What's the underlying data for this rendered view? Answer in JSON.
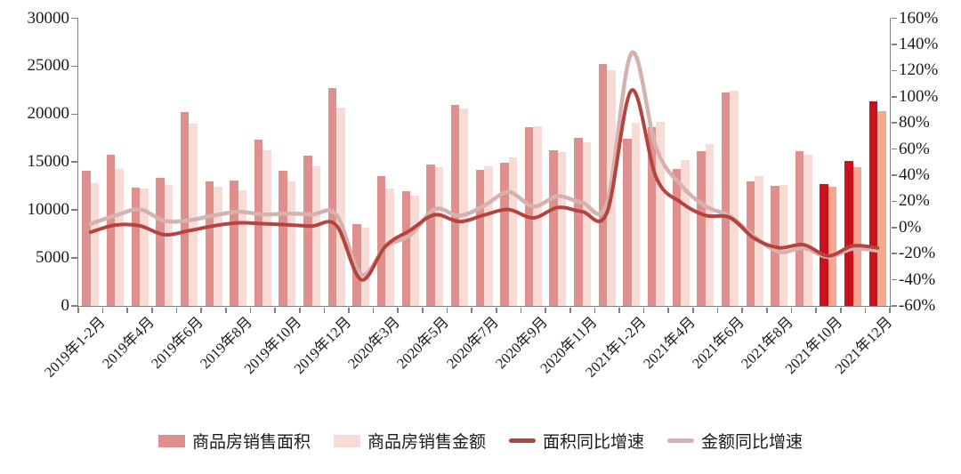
{
  "page": {
    "background": "#ffffff"
  },
  "chart_data": {
    "type": "bar",
    "subtype": "dual-axis bar + smooth line combo",
    "title": "",
    "grid": "off",
    "categories": [
      "2019年1-2月",
      "2019年3月",
      "2019年4月",
      "2019年5月",
      "2019年6月",
      "2019年7月",
      "2019年8月",
      "2019年9月",
      "2019年10月",
      "2019年11月",
      "2019年12月",
      "2020年1-2月",
      "2020年3月",
      "2020年4月",
      "2020年5月",
      "2020年6月",
      "2020年7月",
      "2020年8月",
      "2020年9月",
      "2020年10月",
      "2020年11月",
      "2020年12月",
      "2021年1-2月",
      "2021年3月",
      "2021年4月",
      "2021年5月",
      "2021年6月",
      "2021年7月",
      "2021年8月",
      "2021年9月",
      "2021年10月",
      "2021年11月",
      "2021年12月"
    ],
    "x_axis": {
      "label_every": 2,
      "labels_shown": [
        "2019年1-2月",
        "2019年4月",
        "2019年6月",
        "2019年8月",
        "2019年10月",
        "2019年12月",
        "2020年3月",
        "2020年5月",
        "2020年7月",
        "2020年9月",
        "2020年11月",
        "2021年1-2月",
        "2021年4月",
        "2021年6月",
        "2021年8月",
        "2021年10月",
        "2021年12月"
      ]
    },
    "left_axis": {
      "min": 0,
      "max": 30000,
      "step": 5000,
      "tick_labels": [
        "0",
        "5000",
        "10000",
        "15000",
        "20000",
        "25000",
        "30000"
      ]
    },
    "right_axis": {
      "min": -60,
      "max": 160,
      "step": 20,
      "tick_labels": [
        "-60%",
        "-40%",
        "-20%",
        "0%",
        "20%",
        "40%",
        "60%",
        "80%",
        "100%",
        "120%",
        "140%",
        "160%"
      ]
    },
    "series": [
      {
        "name": "商品房销售面积",
        "type": "bar",
        "axis": "left",
        "color": "#df908e",
        "highlight": {
          "last_n": 3,
          "color": "#c9121b"
        },
        "values": [
          14100,
          15800,
          12300,
          13400,
          20200,
          13000,
          13100,
          17300,
          14100,
          15700,
          22700,
          8500,
          13500,
          12000,
          14700,
          21000,
          14200,
          14900,
          18600,
          16200,
          17500,
          25200,
          17400,
          18600,
          14300,
          16100,
          22300,
          13000,
          12500,
          16100,
          12700,
          15100,
          21300
        ]
      },
      {
        "name": "商品房销售金额",
        "type": "bar",
        "axis": "left",
        "color": "#f8dbd5",
        "highlight": {
          "last_n": 3,
          "color": "#f6a78d"
        },
        "values": [
          12800,
          14300,
          12200,
          12600,
          19000,
          12400,
          12100,
          16200,
          13000,
          14600,
          20700,
          8200,
          12200,
          11500,
          14500,
          20600,
          14600,
          15500,
          18700,
          16000,
          17100,
          24600,
          19100,
          19200,
          15200,
          16900,
          22400,
          13500,
          12600,
          15800,
          12400,
          14500,
          20300
        ]
      },
      {
        "name": "面积同比增速",
        "type": "line",
        "axis": "right",
        "color": "#b5433e",
        "values_pct": [
          -3.6,
          1.8,
          1.3,
          -5.5,
          -2.5,
          1.2,
          3.5,
          2.9,
          2.0,
          1.1,
          1.5,
          -39.9,
          -14.1,
          -2.1,
          9.7,
          4.5,
          9.5,
          13.7,
          7.3,
          15.3,
          12.1,
          11.5,
          104.9,
          38.1,
          19.2,
          9.2,
          7.5,
          -8.5,
          -15.5,
          -13.2,
          -21.7,
          -14.0,
          -15.6
        ]
      },
      {
        "name": "金额同比增速",
        "type": "line",
        "axis": "right",
        "color": "#d5b2af",
        "values_pct": [
          2.8,
          9.0,
          13.8,
          5.1,
          5.5,
          9.1,
          12.0,
          10.0,
          10.5,
          10.0,
          9.5,
          -35.9,
          -14.6,
          -5.9,
          14.0,
          9.0,
          16.6,
          27.1,
          16.1,
          23.9,
          18.9,
          18.9,
          133.4,
          60.7,
          32.5,
          16.3,
          8.6,
          -7.1,
          -18.7,
          -15.8,
          -22.6,
          -16.3,
          -17.8
        ]
      }
    ],
    "legend": {
      "position": "bottom",
      "items": [
        "商品房销售面积",
        "商品房销售金额",
        "面积同比增速",
        "金额同比增速"
      ]
    }
  }
}
